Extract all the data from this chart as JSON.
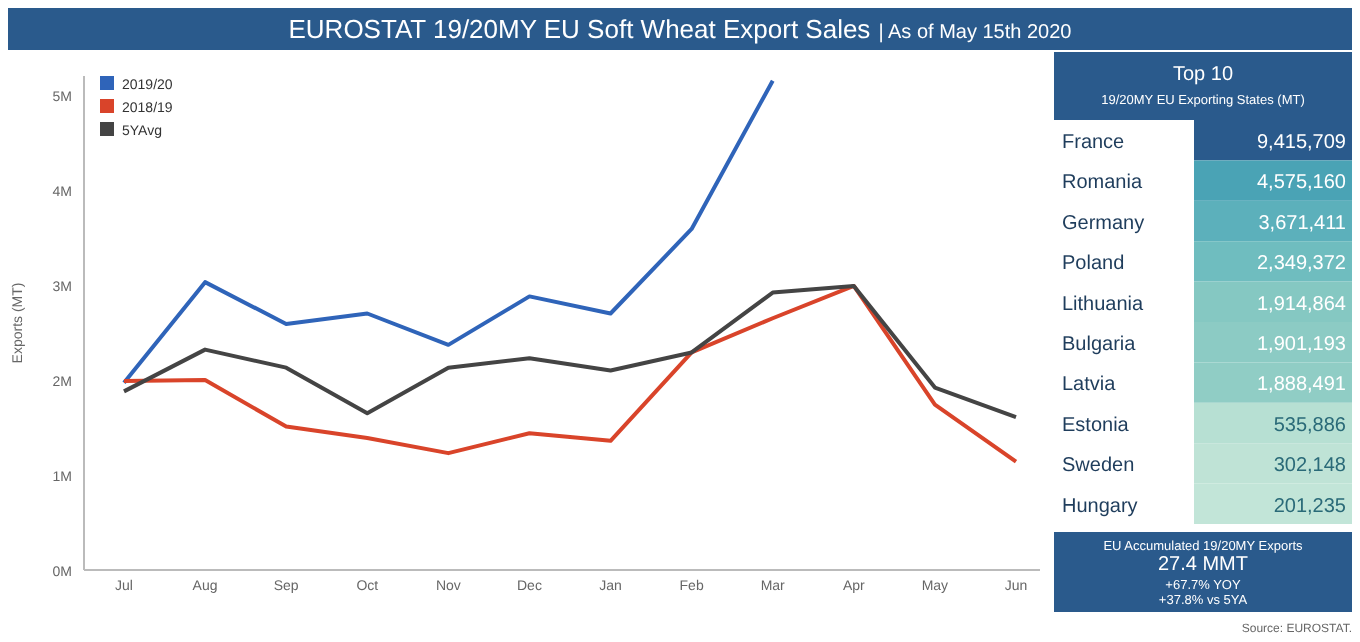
{
  "chart_data": [
    {
      "type": "line",
      "title": "EUROSTAT 19/20MY EU Soft Wheat Export Sales",
      "subtitle": "| As of May 15th 2020",
      "ylabel": "Exports (MT)",
      "categories": [
        "Jul",
        "Aug",
        "Sep",
        "Oct",
        "Nov",
        "Dec",
        "Jan",
        "Feb",
        "Mar",
        "Apr",
        "May",
        "Jun"
      ],
      "series": [
        {
          "name": "2019/20",
          "color": "#2f64b9",
          "values": [
            1.97,
            3.03,
            2.59,
            2.7,
            2.37,
            2.88,
            2.7,
            3.59,
            5.15,
            null,
            null,
            null
          ]
        },
        {
          "name": "2018/19",
          "color": "#d9442a",
          "values": [
            1.99,
            2.0,
            1.51,
            1.39,
            1.23,
            1.44,
            1.36,
            2.29,
            2.65,
            2.99,
            1.74,
            1.14
          ]
        },
        {
          "name": "5YAvg",
          "color": "#444444",
          "values": [
            1.88,
            2.32,
            2.13,
            1.65,
            2.13,
            2.23,
            2.1,
            2.29,
            2.92,
            2.99,
            1.92,
            1.61
          ]
        }
      ],
      "ylim": [
        0,
        5.2
      ],
      "yticks": [
        {
          "value": 0,
          "label": "0M"
        },
        {
          "value": 1,
          "label": "1M"
        },
        {
          "value": 2,
          "label": "2M"
        },
        {
          "value": 3,
          "label": "3M"
        },
        {
          "value": 4,
          "label": "4M"
        },
        {
          "value": 5,
          "label": "5M"
        }
      ],
      "legend": "top left",
      "annotations": [
        "Source: EUROSTAT."
      ]
    },
    {
      "type": "other",
      "title": "Top 10",
      "subtitle": "19/20MY EU Exporting States (MT)",
      "categories": [
        "France",
        "Romania",
        "Germany",
        "Poland",
        "Lithuania",
        "Bulgaria",
        "Latvia",
        "Estonia",
        "Sweden",
        "Hungary"
      ],
      "colors": [
        "#2a5a8c",
        "#4aa3b5",
        "#5cb0bb",
        "#6fbdbf",
        "#85c8c2",
        "#8ccbc4",
        "#90cdc5",
        "#b7e0d3",
        "#bfe3d6",
        "#c2e5d8"
      ],
      "value_labels": [
        "9,415,709",
        "4,575,160",
        "3,671,411",
        "2,349,372",
        "1,914,864",
        "1,901,193",
        "1,888,491",
        "535,886",
        "302,148",
        "201,235"
      ]
    },
    {
      "type": "other",
      "title": "EU Accumulated 19/20MY Exports",
      "annotations": [
        "27.4 MMT",
        "+67.7% YOY",
        "+37.8% vs 5YA"
      ]
    }
  ]
}
